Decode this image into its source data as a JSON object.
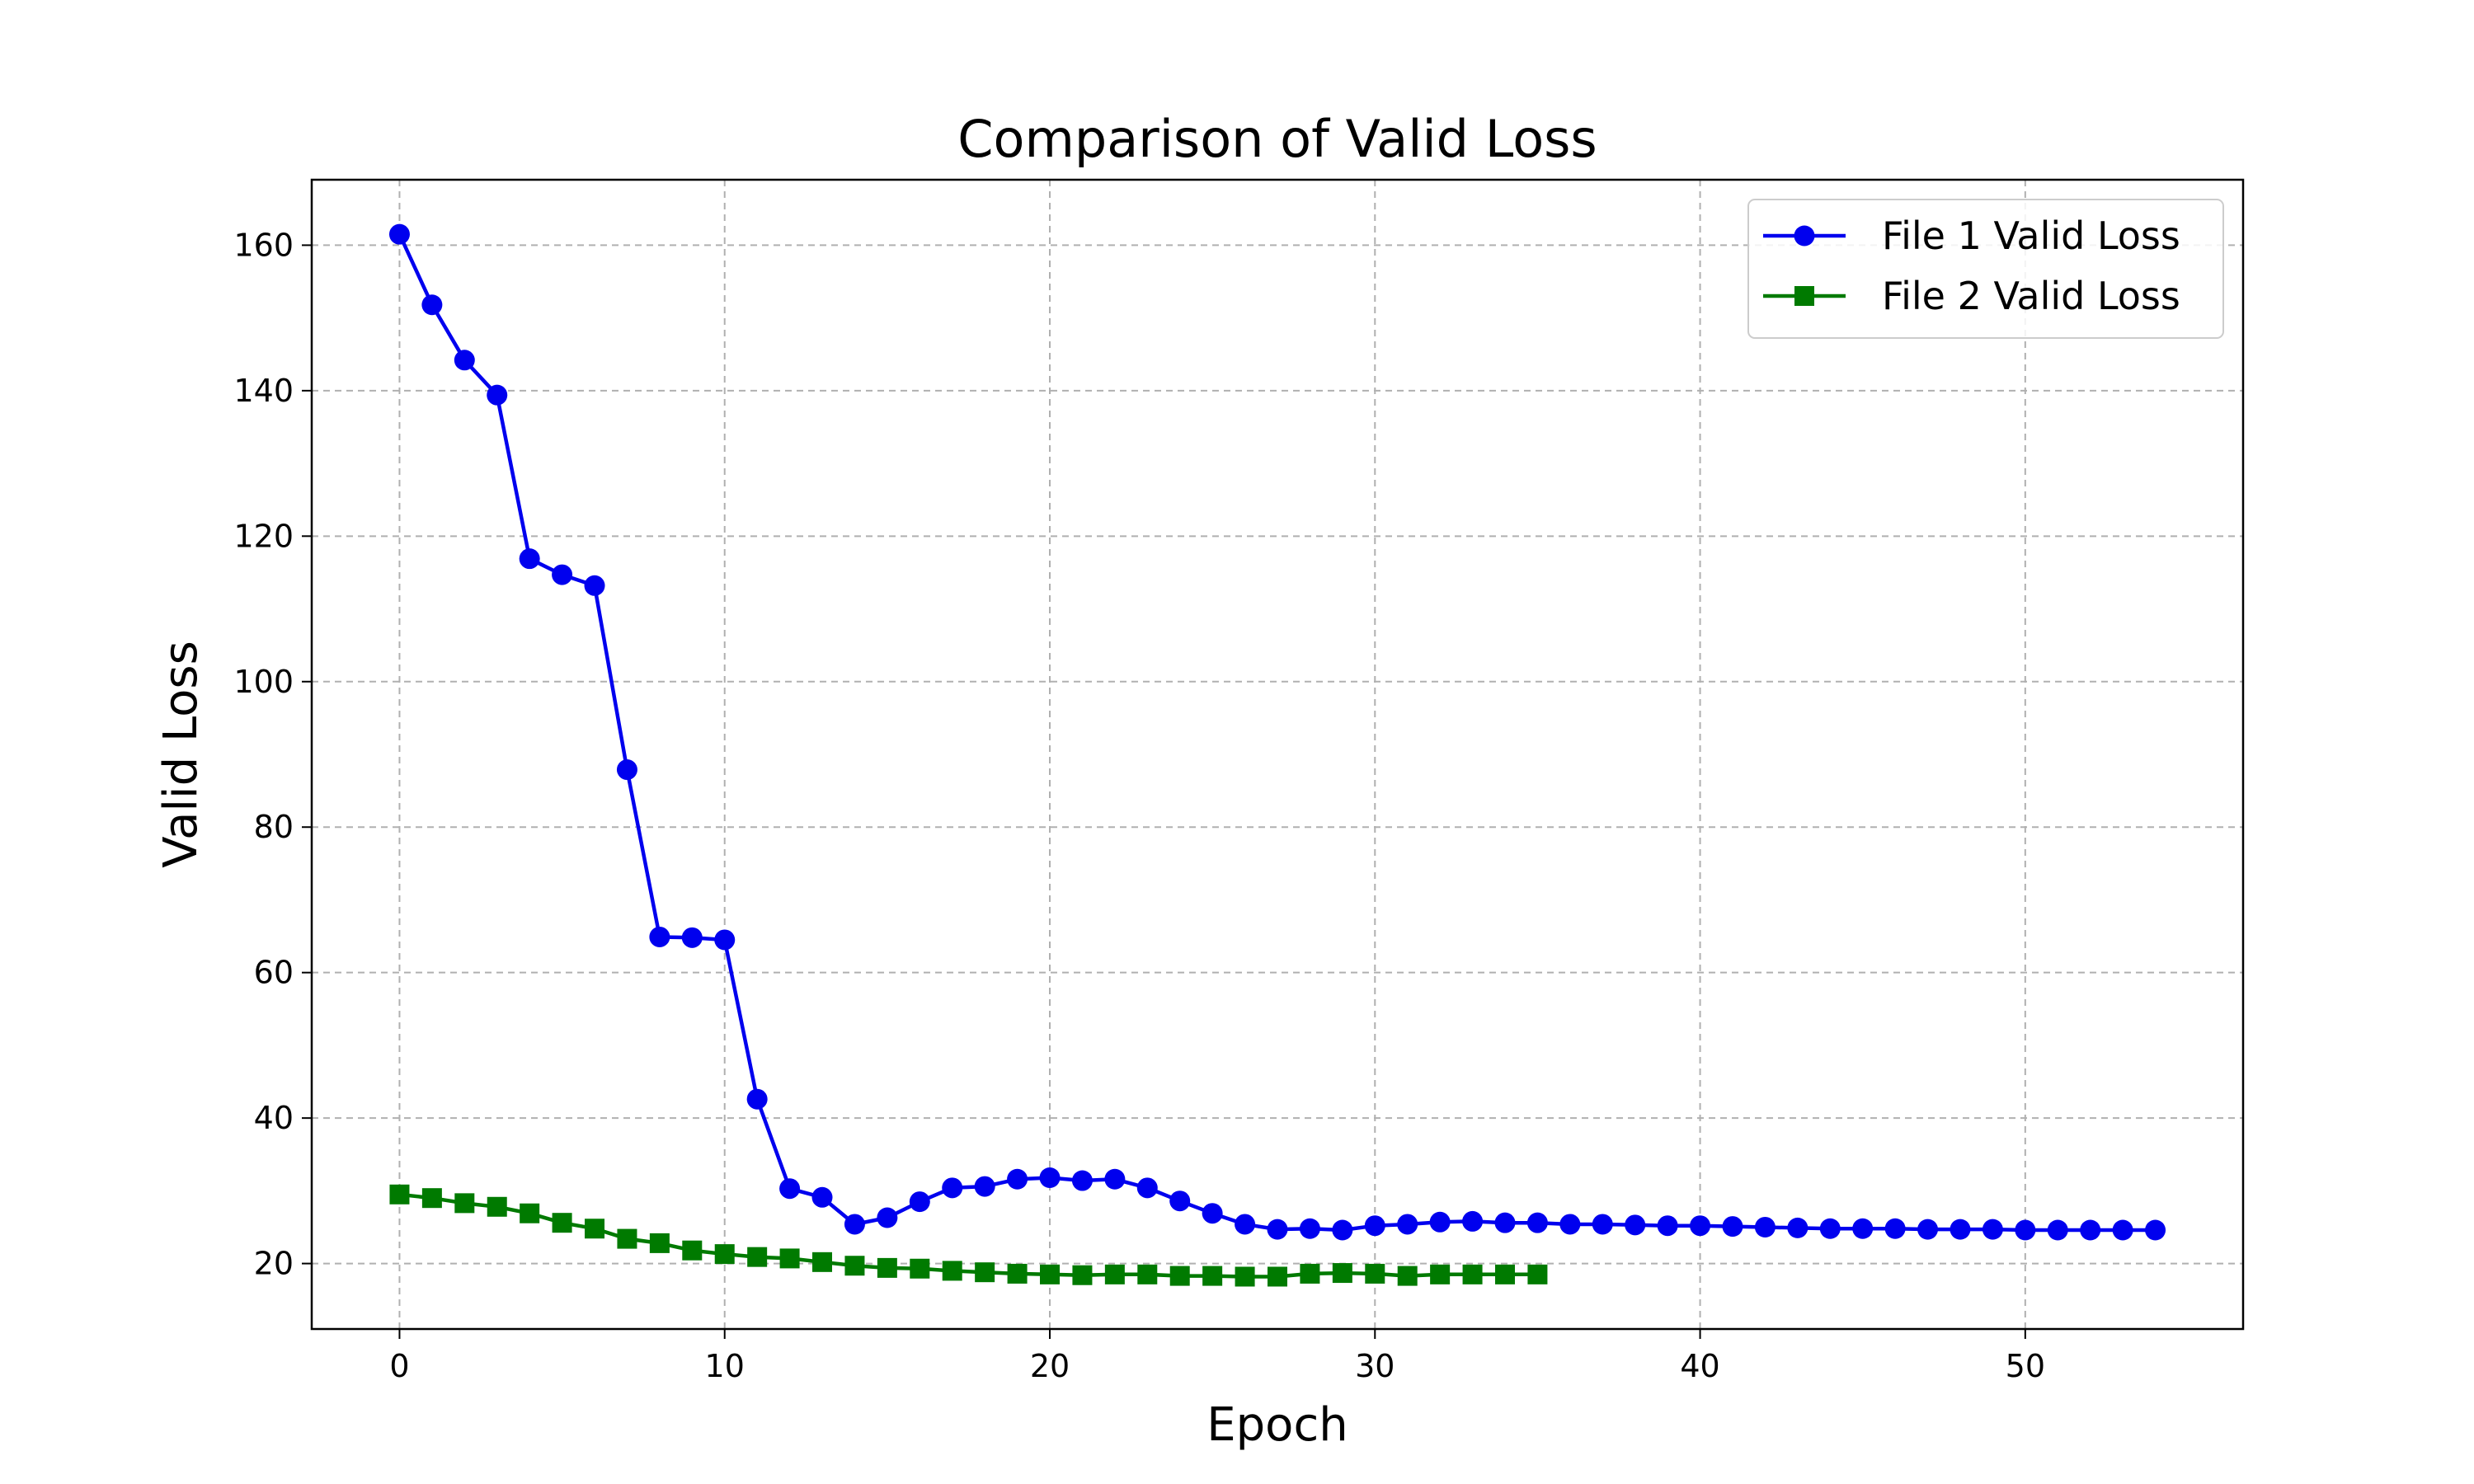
{
  "chart_data": {
    "type": "line",
    "title": "Comparison of Valid Loss",
    "xlabel": "Epoch",
    "ylabel": "Valid Loss",
    "xlim": [
      -2.7,
      56.7
    ],
    "ylim": [
      11,
      169
    ],
    "xticks": [
      0,
      10,
      20,
      30,
      40,
      50
    ],
    "yticks": [
      20,
      40,
      60,
      80,
      100,
      120,
      140,
      160
    ],
    "grid": true,
    "legend": "top-right",
    "series": [
      {
        "name": "File 1 Valid Loss",
        "color": "#0000ee",
        "marker": "circle",
        "x": [
          0,
          1,
          2,
          3,
          4,
          5,
          6,
          7,
          8,
          9,
          10,
          11,
          12,
          13,
          14,
          15,
          16,
          17,
          18,
          19,
          20,
          21,
          22,
          23,
          24,
          25,
          26,
          27,
          28,
          29,
          30,
          31,
          32,
          33,
          34,
          35,
          36,
          37,
          38,
          39,
          40,
          41,
          42,
          43,
          44,
          45,
          46,
          47,
          48,
          49,
          50,
          51,
          52,
          53,
          54
        ],
        "values": [
          161.5,
          151.8,
          144.2,
          139.4,
          116.9,
          114.7,
          113.2,
          87.9,
          64.9,
          64.8,
          64.5,
          42.6,
          30.3,
          29.1,
          25.4,
          26.3,
          28.5,
          30.4,
          30.6,
          31.6,
          31.8,
          31.4,
          31.6,
          30.4,
          28.6,
          26.9,
          25.4,
          24.7,
          24.8,
          24.6,
          25.2,
          25.4,
          25.7,
          25.8,
          25.6,
          25.6,
          25.4,
          25.4,
          25.3,
          25.2,
          25.2,
          25.1,
          25.0,
          24.9,
          24.8,
          24.8,
          24.8,
          24.7,
          24.7,
          24.7,
          24.6,
          24.6,
          24.6,
          24.6,
          24.6
        ]
      },
      {
        "name": "File 2 Valid Loss",
        "color": "#007a00",
        "marker": "square",
        "x": [
          0,
          1,
          2,
          3,
          4,
          5,
          6,
          7,
          8,
          9,
          10,
          11,
          12,
          13,
          14,
          15,
          16,
          17,
          18,
          19,
          20,
          21,
          22,
          23,
          24,
          25,
          26,
          27,
          28,
          29,
          30,
          31,
          32,
          33,
          34,
          35
        ],
        "values": [
          29.5,
          29.0,
          28.3,
          27.8,
          26.9,
          25.6,
          24.8,
          23.4,
          22.8,
          21.8,
          21.3,
          20.9,
          20.7,
          20.2,
          19.7,
          19.4,
          19.3,
          19.0,
          18.8,
          18.6,
          18.5,
          18.4,
          18.5,
          18.5,
          18.3,
          18.3,
          18.2,
          18.2,
          18.6,
          18.7,
          18.6,
          18.3,
          18.5,
          18.5,
          18.5,
          18.5
        ]
      }
    ]
  }
}
